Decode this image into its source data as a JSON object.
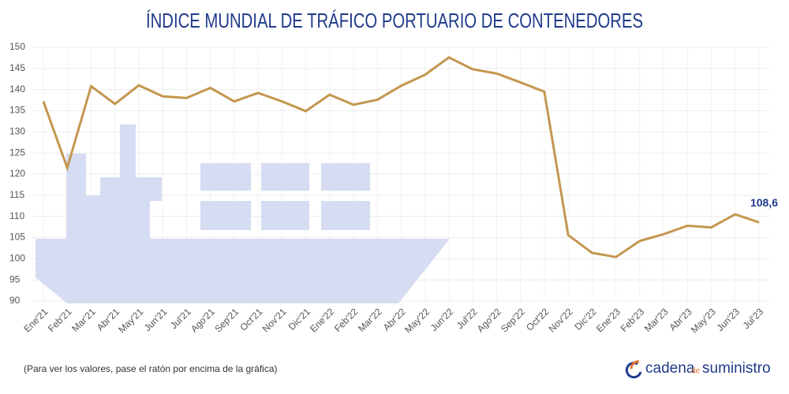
{
  "chart_data": {
    "type": "line",
    "title": "ÍNDICE MUNDIAL DE TRÁFICO PORTUARIO DE CONTENEDORES",
    "categories": [
      "Ene'21",
      "Feb'21",
      "Mar'21",
      "Abr'21",
      "May'21",
      "Jun'21",
      "Jul'21",
      "Ago'21",
      "Sep'21",
      "Oct'21",
      "Nov'21",
      "Dic'21",
      "Ene'22",
      "Feb'22",
      "Mar'22",
      "Abr'22",
      "May'22",
      "Jun'22",
      "Jul'22",
      "Ago'22",
      "Sep'22",
      "Oct'22",
      "Nov'22",
      "Dic'22",
      "Ene'23",
      "Feb'23",
      "Mar'23",
      "Abr'23",
      "May'23",
      "Jun'23",
      "Jul'23"
    ],
    "series": [
      {
        "color": "#c4974f",
        "values": [
          137.2,
          121.5,
          140.8,
          136.6,
          141,
          138.4,
          138,
          140.4,
          137.2,
          139.2,
          137.2,
          134.9,
          138.8,
          136.4,
          137.6,
          140.9,
          143.5,
          147.6,
          144.8,
          143.8,
          141.7,
          139.5,
          105.6,
          101.4,
          100.4,
          104.2,
          105.8,
          107.8,
          107.4,
          110.5,
          108.6
        ],
        "value_labels": [
          null,
          null,
          null,
          null,
          null,
          null,
          null,
          null,
          null,
          null,
          null,
          null,
          null,
          null,
          null,
          null,
          null,
          null,
          null,
          null,
          null,
          null,
          null,
          null,
          null,
          null,
          null,
          null,
          null,
          null,
          "108,6"
        ]
      }
    ],
    "ylim": [
      90,
      150
    ],
    "yticks": [
      90,
      95,
      100,
      105,
      110,
      115,
      120,
      125,
      130,
      135,
      140,
      145,
      150
    ],
    "grid": true
  },
  "footer": {
    "note": "(Para ver los valores, pase el ratón por encima de la gráfica)",
    "logo_a": "cadena",
    "logo_b": "de",
    "logo_c": "suministro"
  }
}
